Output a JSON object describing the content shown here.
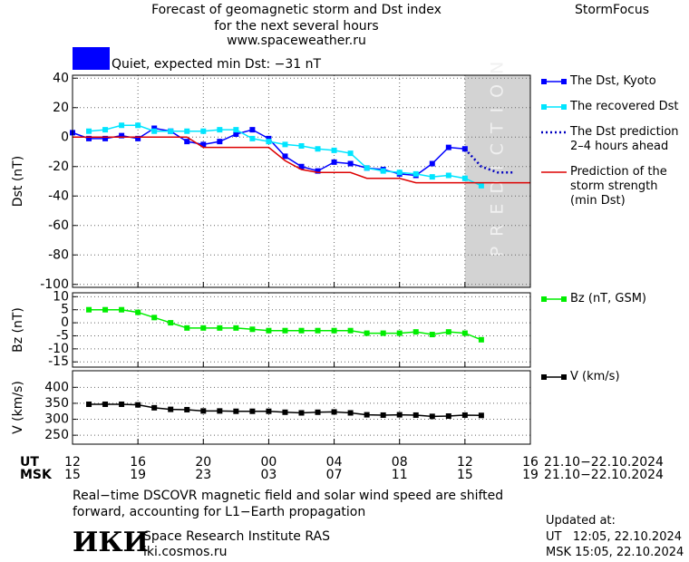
{
  "header": {
    "title_lines": [
      "Forecast of geomagnetic storm and Dst index",
      "for the next several hours",
      "www.spaceweather.ru"
    ],
    "product": "StormFocus"
  },
  "time_axis": {
    "ut_label": "UT",
    "msk_label": "MSK",
    "ut_range": "21.10−22.10.2024",
    "msk_range": "21.10−22.10.2024"
  },
  "chart_data": [
    {
      "type": "line",
      "y_label": "Dst (nT)",
      "ylim": [
        -102,
        42
      ],
      "yticks": [
        -100,
        -80,
        -60,
        -40,
        -20,
        0,
        20,
        40
      ],
      "grid": true,
      "status": {
        "text": "Quiet, expected min Dst: −31 nT",
        "color": "#0000ff"
      },
      "prediction_label": "PREDICTION",
      "prediction_color": "#d3d3d3",
      "series": [
        {
          "name": "The Dst, Kyoto",
          "color": "#0000ff",
          "markers": true,
          "values": [
            3,
            -1,
            -1,
            1,
            -1,
            6,
            4,
            -3,
            -5,
            -3,
            2,
            5,
            -1,
            -13,
            -20,
            -23,
            -17,
            -18,
            -21,
            -22,
            -25,
            -26,
            -18,
            -7,
            -8,
            null,
            null,
            null,
            null
          ]
        },
        {
          "name": "The recovered Dst",
          "color": "#00e5ff",
          "markers": true,
          "values": [
            null,
            4,
            5,
            8,
            8,
            4,
            4,
            4,
            4,
            5,
            5,
            -1,
            -3,
            -5,
            -6,
            -8,
            -9,
            -11,
            -21,
            -23,
            -24,
            -25,
            -27,
            -26,
            -28,
            -33,
            null,
            null,
            null
          ]
        },
        {
          "name": "The Dst prediction\n2–4 hours ahead",
          "color": "#0000c0",
          "dash": "dotted",
          "values": [
            null,
            null,
            null,
            null,
            null,
            null,
            null,
            null,
            null,
            null,
            null,
            null,
            null,
            null,
            null,
            null,
            null,
            null,
            null,
            null,
            null,
            null,
            null,
            null,
            -8,
            -20,
            -24,
            -24,
            null
          ]
        },
        {
          "name": "Prediction of the\nstorm strength\n(min Dst)",
          "color": "#dd0000",
          "values": [
            0,
            0,
            0,
            0,
            0,
            0,
            0,
            0,
            -7,
            -7,
            -7,
            -7,
            -7,
            -16,
            -22,
            -24,
            -24,
            -24,
            -28,
            -28,
            -28,
            -31,
            -31,
            -31,
            -31,
            -31,
            -31,
            -31,
            -31
          ]
        }
      ]
    },
    {
      "type": "line",
      "y_label": "Bz (nT)",
      "ylim": [
        -17,
        11.5
      ],
      "yticks": [
        -15,
        -10,
        -5,
        0,
        5,
        10
      ],
      "grid": true,
      "series": [
        {
          "name": "Bz (nT, GSM)",
          "color": "#00ee00",
          "markers": true,
          "values": [
            null,
            5,
            5,
            5,
            4,
            2,
            0,
            -2,
            -2,
            -2,
            -2,
            -2.5,
            -3,
            -3,
            -3,
            -3,
            -3,
            -3,
            -4,
            -4,
            -4,
            -3.5,
            -4.5,
            -3.5,
            -4,
            -6.5,
            null,
            null,
            null
          ]
        }
      ]
    },
    {
      "type": "line",
      "y_label": "V (km/s)",
      "ylim": [
        222,
        452
      ],
      "yticks": [
        250,
        300,
        350,
        400
      ],
      "grid": true,
      "categories": [
        "12",
        null,
        null,
        null,
        "16",
        null,
        null,
        null,
        "20",
        null,
        null,
        null,
        "00",
        null,
        null,
        null,
        "04",
        null,
        null,
        null,
        "08",
        null,
        null,
        null,
        "12",
        null,
        null,
        null,
        "16"
      ],
      "categories_msk": [
        "15",
        null,
        null,
        null,
        "19",
        null,
        null,
        null,
        "23",
        null,
        null,
        null,
        "03",
        null,
        null,
        null,
        "07",
        null,
        null,
        null,
        "11",
        null,
        null,
        null,
        "15",
        null,
        null,
        null,
        "19"
      ],
      "series": [
        {
          "name": "V (km/s)",
          "color": "#000000",
          "markers": true,
          "values": [
            null,
            347,
            347,
            347,
            345,
            336,
            331,
            330,
            326,
            326,
            325,
            325,
            325,
            322,
            320,
            322,
            323,
            320,
            314,
            313,
            314,
            313,
            309,
            310,
            313,
            312,
            null,
            null,
            null
          ]
        }
      ]
    }
  ],
  "footer": {
    "note": "Real−time DSCOVR magnetic field and solar wind speed are shifted\nforward, accounting for L1−Earth propagation",
    "logo": "ИКИ",
    "institute": "Space Research Institute RAS",
    "site": "iki.cosmos.ru",
    "updated_title": "Updated at:",
    "updated_ut": "UT   12:05, 22.10.2024",
    "updated_msk": "MSK 15:05, 22.10.2024"
  }
}
